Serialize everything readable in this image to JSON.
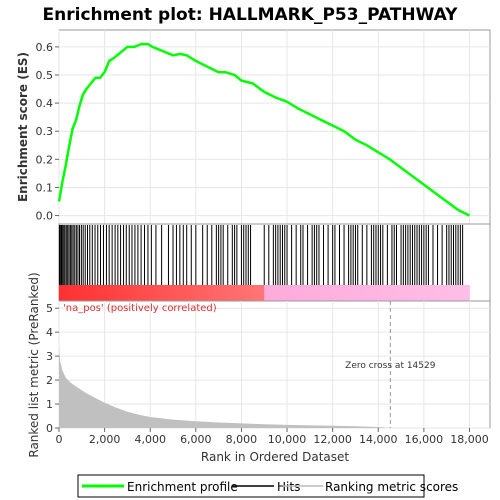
{
  "chart_data": {
    "type": "line",
    "title": "Enrichment plot: HALLMARK_P53_PATHWAY",
    "es_panel": {
      "ylabel": "Enrichment score (ES)",
      "ylim": [
        -0.03,
        0.66
      ],
      "yticks": [
        "0.0",
        "0.1",
        "0.2",
        "0.3",
        "0.4",
        "0.5",
        "0.6"
      ],
      "ytick_values": [
        0.0,
        0.1,
        0.2,
        0.3,
        0.4,
        0.5,
        0.6
      ],
      "grid": true,
      "line_color": "#00ff00",
      "series": [
        {
          "name": "Enrichment profile",
          "x": [
            0,
            150,
            300,
            450,
            600,
            750,
            900,
            1050,
            1200,
            1400,
            1600,
            1800,
            2000,
            2200,
            2400,
            2700,
            3000,
            3300,
            3600,
            3900,
            4100,
            4400,
            4700,
            5000,
            5300,
            5600,
            6000,
            6500,
            7000,
            7300,
            7700,
            8000,
            8500,
            9000,
            9500,
            10000,
            10500,
            11000,
            11500,
            12000,
            12500,
            13000,
            13500,
            14000,
            14500,
            15000,
            15500,
            16000,
            16500,
            17000,
            17500,
            18000
          ],
          "y": [
            0.05,
            0.12,
            0.18,
            0.25,
            0.31,
            0.34,
            0.39,
            0.43,
            0.45,
            0.47,
            0.49,
            0.49,
            0.51,
            0.55,
            0.56,
            0.58,
            0.6,
            0.6,
            0.61,
            0.61,
            0.6,
            0.59,
            0.58,
            0.57,
            0.575,
            0.57,
            0.55,
            0.53,
            0.51,
            0.51,
            0.5,
            0.48,
            0.47,
            0.44,
            0.42,
            0.405,
            0.38,
            0.36,
            0.34,
            0.32,
            0.3,
            0.27,
            0.25,
            0.225,
            0.2,
            0.17,
            0.14,
            0.11,
            0.08,
            0.05,
            0.02,
            0.0
          ]
        }
      ]
    },
    "hits_panel": {
      "hit_positions": [
        20,
        60,
        110,
        160,
        210,
        260,
        320,
        380,
        440,
        500,
        560,
        620,
        690,
        760,
        830,
        900,
        980,
        1060,
        1150,
        1250,
        1350,
        1460,
        1580,
        1700,
        1820,
        1950,
        2080,
        2200,
        2330,
        2460,
        2580,
        2700,
        2830,
        2950,
        3080,
        3200,
        3330,
        3460,
        3600,
        3750,
        3900,
        4050,
        4250,
        4500,
        4800,
        5000,
        5150,
        5300,
        5450,
        5600,
        5800,
        6000,
        6300,
        6500,
        6700,
        6900,
        7000,
        7100,
        7200,
        7400,
        7600,
        7700,
        7800,
        8000,
        8100,
        8200,
        8300,
        8400,
        9000,
        9200,
        9400,
        9500,
        9600,
        9700,
        9800,
        9900,
        10000,
        10200,
        10400,
        10600,
        10700,
        10900,
        11100,
        11200,
        11300,
        11400,
        11600,
        11800,
        12000,
        12100,
        12300,
        12500,
        12700,
        12800,
        12900,
        13000,
        13100,
        13300,
        13500,
        13700,
        13800,
        13900,
        14000,
        14100,
        14200,
        14400,
        14600,
        14700,
        14800,
        15000,
        15100,
        15200,
        15300,
        15400,
        15500,
        15600,
        15700,
        15800,
        15900,
        16000,
        16100,
        16200,
        16400,
        16600,
        16800,
        17000,
        17100,
        17200,
        17300,
        17400,
        17500,
        17600,
        17700
      ]
    },
    "metric_panel": {
      "ylabel": "Ranked list metric (PreRanked)",
      "ylim": [
        0,
        5.3
      ],
      "yticks": [
        "0",
        "1",
        "2",
        "3",
        "4",
        "5"
      ],
      "ytick_values": [
        0,
        1,
        2,
        3,
        4,
        5
      ],
      "series": [
        {
          "name": "Ranking metric scores",
          "x": [
            0,
            50,
            150,
            300,
            500,
            800,
            1200,
            1600,
            2000,
            2500,
            3000,
            3500,
            4000,
            5000,
            6000,
            7000,
            8000,
            9000,
            10000,
            11000,
            12000,
            13000,
            14000,
            14529,
            15000,
            16000,
            17000,
            18000
          ],
          "y": [
            3.4,
            2.8,
            2.4,
            2.1,
            1.9,
            1.7,
            1.45,
            1.25,
            1.05,
            0.85,
            0.68,
            0.55,
            0.46,
            0.35,
            0.28,
            0.23,
            0.19,
            0.16,
            0.13,
            0.11,
            0.09,
            0.07,
            0.04,
            0.0,
            0.0,
            0.0,
            0.0,
            0.0
          ]
        }
      ],
      "positive_label": "'na_pos' (positively correlated)",
      "zero_cross_label": "Zero cross at 14529",
      "zero_cross_x": 14529
    },
    "xaxis": {
      "label": "Rank in Ordered Dataset",
      "xlim": [
        0,
        18900
      ],
      "xticks": [
        "0",
        "2,000",
        "4,000",
        "6,000",
        "8,000",
        "10,000",
        "12,000",
        "14,000",
        "16,000",
        "18,000"
      ],
      "xtick_values": [
        0,
        2000,
        4000,
        6000,
        8000,
        10000,
        12000,
        14000,
        16000,
        18000
      ]
    },
    "legend": {
      "placement": "bottom",
      "entries": [
        {
          "label": "Enrichment profile",
          "color": "#00ff00"
        },
        {
          "label": "Hits",
          "color": "#000000"
        },
        {
          "label": "Ranking metric scores",
          "color": "#bbbbbb"
        }
      ]
    },
    "colors": {
      "profile": "#00ff00",
      "grid": "#e6e6e6",
      "metric_fill": "#c0c0c0",
      "bar_pos": "#ff3030",
      "bar_neg": "#ff99dd"
    }
  }
}
